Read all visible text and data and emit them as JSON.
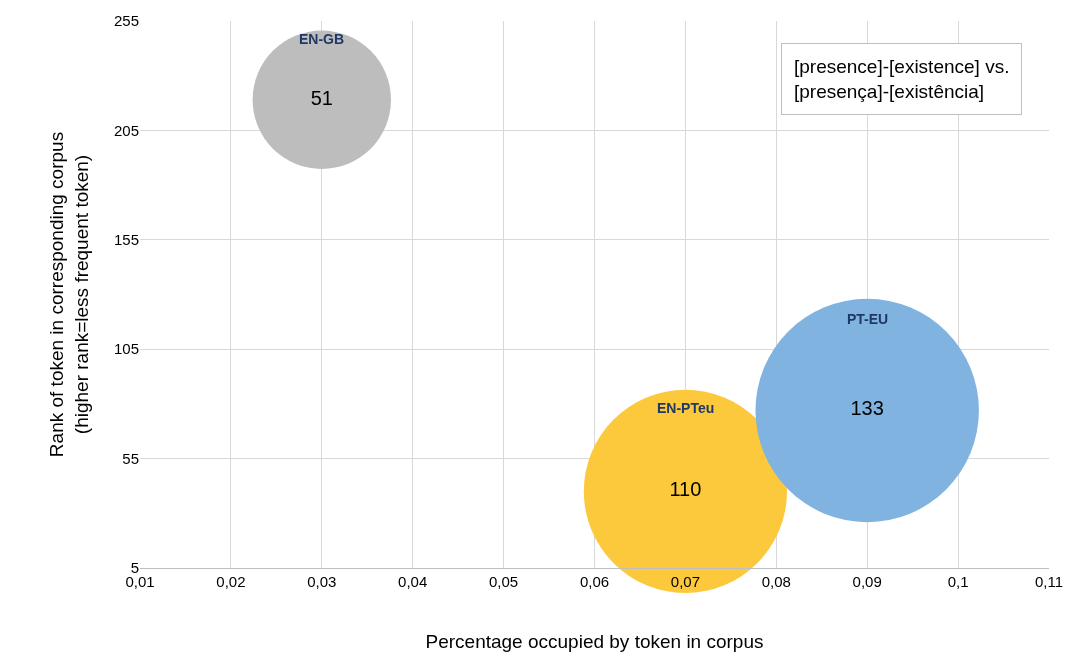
{
  "chart_data": {
    "type": "bubble",
    "xlabel": "Percentage occupied by token in corpus",
    "ylabel": "Rank of token in corresponding corpus\n(higher rank=less frequent token)",
    "annotations": [
      "[presence]-[existence] vs.\n[presença]-[existência]"
    ],
    "series": [
      {
        "name": "EN-GB",
        "color": "#bdbdbd",
        "x": [
          0.03
        ],
        "values": [
          219
        ],
        "sizes": [
          51
        ],
        "value_labels": [
          "51"
        ]
      },
      {
        "name": "EN-PTeu",
        "color": "#fdc93c",
        "x": [
          0.07
        ],
        "values": [
          40
        ],
        "sizes": [
          110
        ],
        "value_labels": [
          "110"
        ]
      },
      {
        "name": "PT-EU",
        "color": "#80b3e0",
        "x": [
          0.09
        ],
        "values": [
          77
        ],
        "sizes": [
          133
        ],
        "value_labels": [
          "133"
        ]
      }
    ],
    "xlim": [
      0.01,
      0.11
    ],
    "xticks": [
      {
        "value": 0.01,
        "label": "0,01"
      },
      {
        "value": 0.02,
        "label": "0,02"
      },
      {
        "value": 0.03,
        "label": "0,03"
      },
      {
        "value": 0.04,
        "label": "0,04"
      },
      {
        "value": 0.05,
        "label": "0,05"
      },
      {
        "value": 0.06,
        "label": "0,06"
      },
      {
        "value": 0.07,
        "label": "0,07"
      },
      {
        "value": 0.08,
        "label": "0,08"
      },
      {
        "value": 0.09,
        "label": "0,09"
      },
      {
        "value": 0.1,
        "label": "0,1"
      },
      {
        "value": 0.11,
        "label": "0,11"
      }
    ],
    "ylim": [
      5,
      255
    ],
    "yticks": [
      5,
      55,
      105,
      155,
      205,
      255
    ],
    "grid": true,
    "legend": false
  }
}
